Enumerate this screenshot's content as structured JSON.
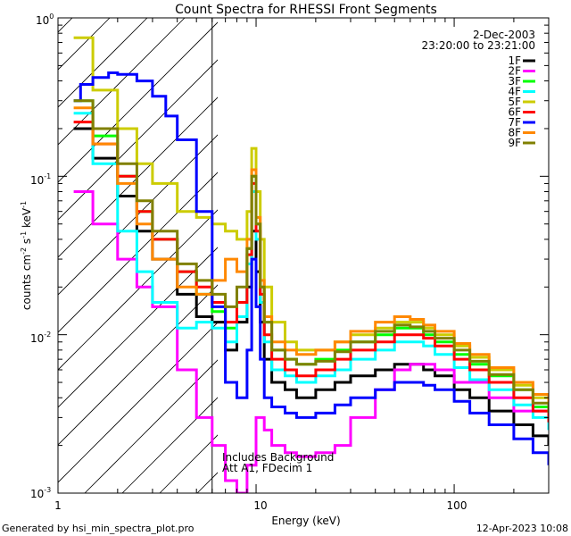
{
  "chart_data": {
    "type": "line",
    "title": "Count Spectra for RHESSI Front Segments",
    "xlabel": "Energy (keV)",
    "ylabel": {
      "base": "counts cm",
      "exp1": "-2",
      "mid1": " s",
      "exp2": "-1",
      "mid2": " keV",
      "exp3": "-1"
    },
    "x_scale": "log",
    "y_scale": "log",
    "xlim": [
      1,
      300
    ],
    "ylim": [
      0.001,
      1
    ],
    "x_ticks": [
      {
        "value": 1,
        "label": "1"
      },
      {
        "value": 10,
        "label": "10"
      },
      {
        "value": 100,
        "label": "100"
      }
    ],
    "y_ticks": [
      {
        "value": 1,
        "base": "10",
        "exp": "0"
      },
      {
        "value": 0.1,
        "base": "10",
        "exp": "-1"
      },
      {
        "value": 0.01,
        "base": "10",
        "exp": "-2"
      },
      {
        "value": 0.001,
        "base": "10",
        "exp": "-3"
      }
    ],
    "attenuator_region_end_kev": 6,
    "date": "2-Dec-2003",
    "time_range": "23:20:00 to 23:21:00",
    "annotation_line1": "Includes Background",
    "annotation_line2": "Att A1, FDecim 1",
    "footer_left": "Generated by hsi_min_spectra_plot.pro",
    "footer_right": "12-Apr-2023 10:08",
    "series": [
      {
        "name": "1F",
        "color": "#000000",
        "x": [
          1.2,
          1.5,
          2,
          2.5,
          3,
          4,
          5,
          6,
          7,
          8,
          9,
          9.5,
          10,
          10.5,
          11,
          12,
          14,
          16,
          20,
          25,
          30,
          40,
          50,
          60,
          70,
          80,
          100,
          120,
          150,
          200,
          250,
          300
        ],
        "y": [
          0.2,
          0.13,
          0.075,
          0.045,
          0.03,
          0.018,
          0.013,
          0.012,
          0.008,
          0.012,
          0.02,
          0.045,
          0.025,
          0.012,
          0.007,
          0.005,
          0.0045,
          0.004,
          0.0045,
          0.005,
          0.0055,
          0.006,
          0.0065,
          0.0065,
          0.006,
          0.0055,
          0.0045,
          0.004,
          0.0033,
          0.0027,
          0.0023,
          0.002
        ]
      },
      {
        "name": "2F",
        "color": "#ff00ff",
        "x": [
          1.2,
          1.5,
          2,
          2.5,
          3,
          4,
          5,
          6,
          7,
          8,
          9,
          10,
          11,
          12,
          14,
          16,
          20,
          25,
          30,
          40,
          50,
          60,
          80,
          100,
          150,
          200,
          300
        ],
        "y": [
          0.08,
          0.05,
          0.03,
          0.02,
          0.015,
          0.006,
          0.003,
          0.002,
          0.0012,
          0.001,
          0.0015,
          0.003,
          0.0025,
          0.002,
          0.0018,
          0.0017,
          0.0018,
          0.002,
          0.003,
          0.0045,
          0.006,
          0.0065,
          0.006,
          0.005,
          0.004,
          0.0033,
          0.0028
        ]
      },
      {
        "name": "3F",
        "color": "#00ff00",
        "x": [
          1.2,
          1.5,
          2,
          2.5,
          3,
          4,
          5,
          6,
          7,
          8,
          9,
          9.5,
          10,
          10.5,
          11,
          12,
          14,
          16,
          20,
          25,
          30,
          40,
          50,
          60,
          70,
          80,
          100,
          120,
          150,
          200,
          250,
          300
        ],
        "y": [
          0.3,
          0.18,
          0.1,
          0.06,
          0.04,
          0.025,
          0.018,
          0.014,
          0.011,
          0.016,
          0.035,
          0.1,
          0.05,
          0.02,
          0.012,
          0.008,
          0.007,
          0.0065,
          0.007,
          0.008,
          0.009,
          0.01,
          0.011,
          0.011,
          0.01,
          0.009,
          0.0075,
          0.0065,
          0.0055,
          0.0045,
          0.0035,
          0.003
        ]
      },
      {
        "name": "4F",
        "color": "#00ffff",
        "x": [
          1.2,
          1.5,
          2,
          2.5,
          3,
          4,
          5,
          6,
          7,
          8,
          9,
          9.5,
          10,
          10.5,
          11,
          12,
          14,
          16,
          20,
          25,
          30,
          40,
          50,
          60,
          70,
          80,
          100,
          120,
          150,
          200,
          250,
          300
        ],
        "y": [
          0.25,
          0.12,
          0.045,
          0.025,
          0.016,
          0.011,
          0.012,
          0.011,
          0.009,
          0.013,
          0.028,
          0.08,
          0.04,
          0.016,
          0.009,
          0.006,
          0.0055,
          0.005,
          0.0055,
          0.006,
          0.007,
          0.008,
          0.009,
          0.009,
          0.0085,
          0.0075,
          0.0062,
          0.0052,
          0.0045,
          0.0036,
          0.003,
          0.0025
        ]
      },
      {
        "name": "5F",
        "color": "#cccc00",
        "x": [
          1.2,
          1.5,
          2,
          2.5,
          3,
          4,
          5,
          6,
          7,
          8,
          9,
          9.5,
          10,
          10.5,
          11,
          12,
          14,
          16,
          20,
          25,
          30,
          40,
          50,
          60,
          70,
          80,
          100,
          120,
          150,
          200,
          250,
          300
        ],
        "y": [
          0.75,
          0.35,
          0.2,
          0.12,
          0.09,
          0.06,
          0.055,
          0.05,
          0.045,
          0.04,
          0.06,
          0.15,
          0.08,
          0.04,
          0.02,
          0.012,
          0.009,
          0.008,
          0.008,
          0.009,
          0.01,
          0.011,
          0.012,
          0.012,
          0.011,
          0.01,
          0.0085,
          0.0072,
          0.006,
          0.0048,
          0.004,
          0.0035
        ]
      },
      {
        "name": "6F",
        "color": "#ff0000",
        "x": [
          1.2,
          1.5,
          2,
          2.5,
          3,
          4,
          5,
          6,
          7,
          8,
          9,
          9.5,
          10,
          10.5,
          11,
          12,
          14,
          16,
          20,
          25,
          30,
          40,
          50,
          60,
          70,
          80,
          100,
          120,
          150,
          200,
          250,
          300
        ],
        "y": [
          0.22,
          0.16,
          0.1,
          0.06,
          0.04,
          0.025,
          0.02,
          0.016,
          0.012,
          0.016,
          0.032,
          0.09,
          0.045,
          0.018,
          0.01,
          0.007,
          0.006,
          0.0055,
          0.006,
          0.007,
          0.008,
          0.009,
          0.01,
          0.01,
          0.0095,
          0.0085,
          0.007,
          0.006,
          0.005,
          0.004,
          0.0033,
          0.0028
        ]
      },
      {
        "name": "7F",
        "color": "#0000ff",
        "x": [
          1.2,
          1.3,
          1.5,
          1.8,
          2,
          2.5,
          3,
          3.5,
          4,
          5,
          6,
          7,
          8,
          9,
          9.5,
          10,
          10.5,
          11,
          12,
          14,
          16,
          20,
          25,
          30,
          40,
          50,
          60,
          70,
          80,
          100,
          120,
          150,
          200,
          250,
          300
        ],
        "y": [
          0.3,
          0.38,
          0.42,
          0.45,
          0.44,
          0.4,
          0.32,
          0.24,
          0.17,
          0.06,
          0.015,
          0.005,
          0.004,
          0.008,
          0.03,
          0.015,
          0.007,
          0.004,
          0.0035,
          0.0032,
          0.003,
          0.0032,
          0.0036,
          0.004,
          0.0045,
          0.005,
          0.005,
          0.0048,
          0.0045,
          0.0038,
          0.0032,
          0.0027,
          0.0022,
          0.0018,
          0.0015
        ]
      },
      {
        "name": "8F",
        "color": "#ff8800",
        "x": [
          1.2,
          1.5,
          2,
          2.5,
          3,
          4,
          5,
          6,
          7,
          8,
          9,
          9.5,
          10,
          10.5,
          11,
          12,
          14,
          16,
          20,
          25,
          30,
          40,
          50,
          60,
          70,
          80,
          100,
          120,
          150,
          200,
          250,
          300
        ],
        "y": [
          0.27,
          0.16,
          0.09,
          0.05,
          0.03,
          0.02,
          0.018,
          0.022,
          0.03,
          0.025,
          0.04,
          0.11,
          0.055,
          0.022,
          0.013,
          0.009,
          0.008,
          0.0075,
          0.008,
          0.009,
          0.0105,
          0.012,
          0.013,
          0.0125,
          0.0115,
          0.0105,
          0.0088,
          0.0075,
          0.0062,
          0.005,
          0.0042,
          0.0036
        ]
      },
      {
        "name": "9F",
        "color": "#808000",
        "x": [
          1.2,
          1.5,
          2,
          2.5,
          3,
          4,
          5,
          6,
          7,
          8,
          9,
          9.5,
          10,
          10.5,
          11,
          12,
          14,
          16,
          20,
          25,
          30,
          40,
          50,
          60,
          70,
          80,
          100,
          120,
          150,
          200,
          250,
          300
        ],
        "y": [
          0.3,
          0.2,
          0.12,
          0.07,
          0.045,
          0.028,
          0.022,
          0.018,
          0.015,
          0.02,
          0.035,
          0.1,
          0.05,
          0.02,
          0.012,
          0.008,
          0.007,
          0.0065,
          0.0068,
          0.0078,
          0.009,
          0.0105,
          0.0115,
          0.0112,
          0.0105,
          0.0095,
          0.008,
          0.0068,
          0.0056,
          0.0045,
          0.0037,
          0.0032
        ]
      }
    ]
  }
}
